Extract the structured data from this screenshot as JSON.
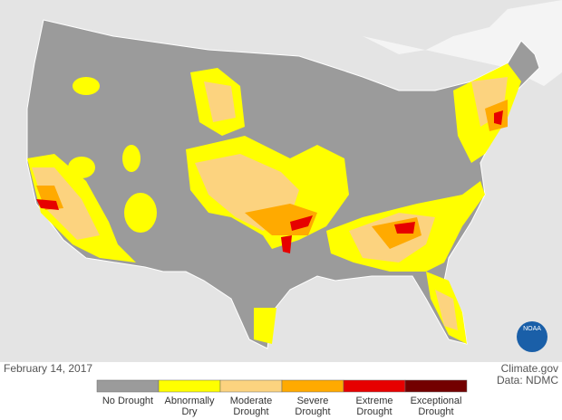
{
  "date": "February 14, 2017",
  "credit": {
    "source": "Climate.gov",
    "data": "Data: NDMC"
  },
  "logo": "NOAA",
  "legend": {
    "categories": [
      {
        "label": "No Drought",
        "color": "#9b9b9b"
      },
      {
        "label": "Abnormally Dry",
        "color": "#ffff00"
      },
      {
        "label": "Moderate Drought",
        "color": "#fcd37f"
      },
      {
        "label": "Severe Drought",
        "color": "#ffaa00"
      },
      {
        "label": "Extreme Drought",
        "color": "#e60000"
      },
      {
        "label": "Exceptional Drought",
        "color": "#730000"
      }
    ]
  }
}
